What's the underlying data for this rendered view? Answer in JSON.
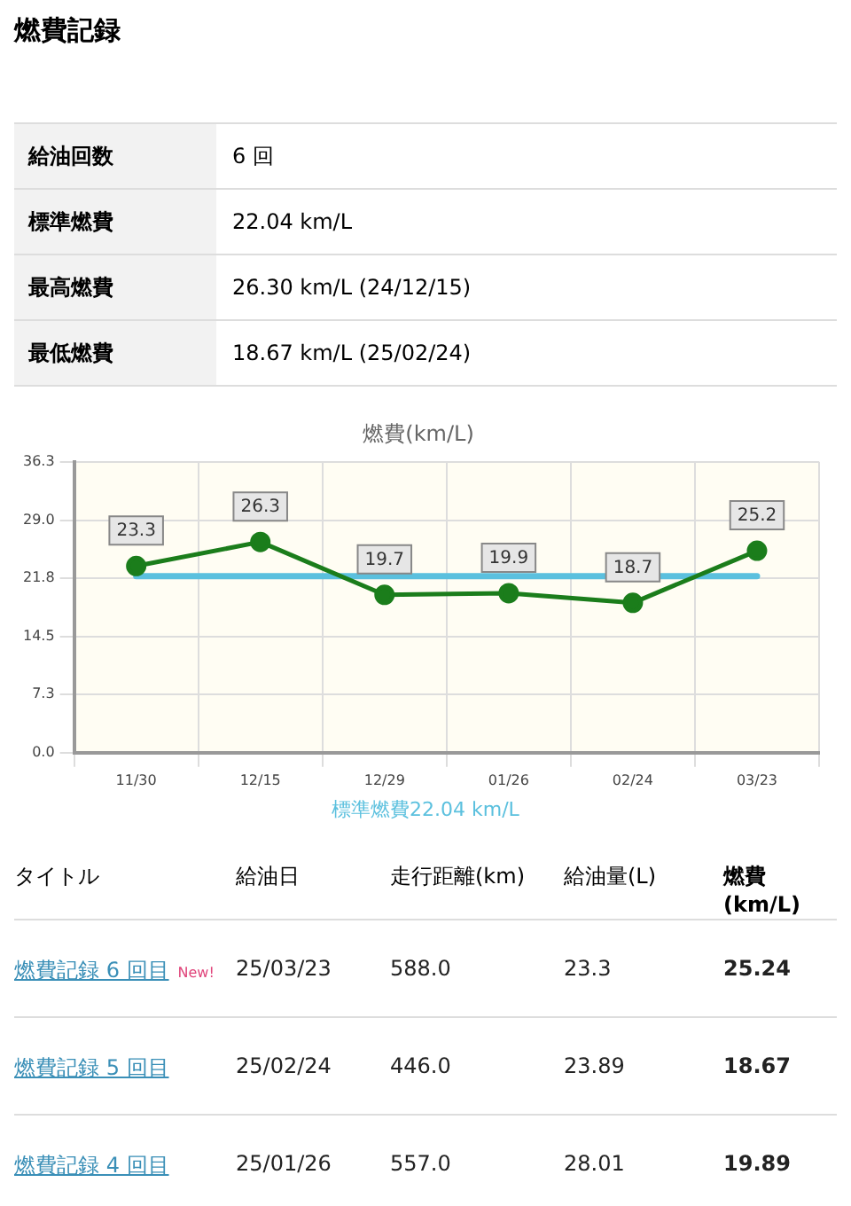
{
  "chart_data": {
    "type": "line",
    "title": "燃費(km/L)",
    "categories": [
      "11/30",
      "12/15",
      "12/29",
      "01/26",
      "02/24",
      "03/23"
    ],
    "series": [
      {
        "color": "#1b7d1b",
        "values": [
          23.3,
          26.3,
          19.7,
          19.9,
          18.7,
          25.2
        ]
      }
    ],
    "ylim": [
      0,
      36.3
    ],
    "yticks": [
      {
        "value": 0,
        "label": "0.0"
      },
      7.3,
      14.5,
      21.8,
      {
        "value": 29,
        "label": "29.0"
      },
      36.3
    ],
    "grid": true,
    "legend": false,
    "marker": "circle",
    "line_style": "solid",
    "data_labels": true,
    "ref_lines": [
      {
        "axis": "y",
        "value": 22.04,
        "label": "標準燃費22.04 km/L",
        "color": "#5bc0de"
      }
    ],
    "annotations": [
      "燃費記録",
      "給油回数",
      "6 回",
      "標準燃費",
      "22.04 km/L",
      "最高燃費",
      "26.30 km/L (24/12/15)",
      "最低燃費",
      "18.67 km/L (25/02/24)",
      "タイトル",
      "給油日",
      "走行距離(km)",
      "給油量(L)",
      "燃費(km/L)",
      "燃費記録 6 回目",
      "New!",
      "25/03/23",
      "588.0",
      "23.3",
      "25.24",
      "燃費記録 5 回目",
      "25/02/24",
      "446.0",
      "23.89",
      "18.67",
      "燃費記録 4 回目",
      "25/01/26",
      "557.0",
      "28.01",
      "19.89"
    ]
  }
}
